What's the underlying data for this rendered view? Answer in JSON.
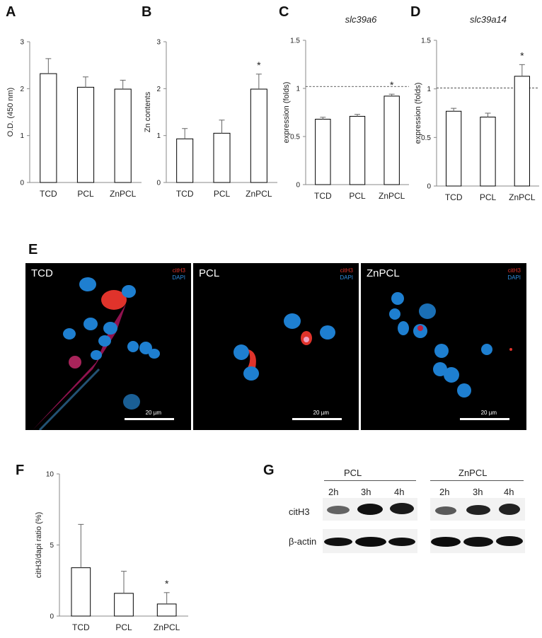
{
  "panels": {
    "A": "A",
    "B": "B",
    "C": "C",
    "D": "D",
    "E": "E",
    "F": "F",
    "G": "G"
  },
  "chart_data": [
    {
      "id": "A",
      "type": "bar",
      "title": "",
      "ylabel": "O.D. (450 nm)",
      "ylim": [
        0,
        3
      ],
      "yticks": [
        "0",
        "1",
        "2",
        "3"
      ],
      "categories": [
        "TCD",
        "PCL",
        "ZnPCL"
      ],
      "values": [
        2.32,
        2.03,
        1.99
      ],
      "errors": [
        0.32,
        0.22,
        0.19
      ],
      "significance": [
        "",
        "",
        ""
      ],
      "reference_line": null
    },
    {
      "id": "B",
      "type": "bar",
      "title": "",
      "ylabel": "Zn contents",
      "ylim": [
        0,
        3
      ],
      "yticks": [
        "0",
        "1",
        "2",
        "3"
      ],
      "categories": [
        "TCD",
        "PCL",
        "ZnPCL"
      ],
      "values": [
        0.93,
        1.05,
        1.99
      ],
      "errors": [
        0.22,
        0.28,
        0.32
      ],
      "significance": [
        "",
        "",
        "*"
      ],
      "reference_line": null
    },
    {
      "id": "C",
      "type": "bar",
      "title": "slc39a6",
      "ylabel": "expression (folds)",
      "ylim": [
        0,
        1.5
      ],
      "yticks": [
        "0",
        "0.5",
        "1",
        "1.5"
      ],
      "categories": [
        "TCD",
        "PCL",
        "ZnPCL"
      ],
      "values": [
        0.68,
        0.71,
        0.92
      ],
      "errors": [
        0.02,
        0.02,
        0.02
      ],
      "significance": [
        "",
        "",
        "*"
      ],
      "reference_line": 1.02
    },
    {
      "id": "D",
      "type": "bar",
      "title": "slc39a14",
      "ylabel": "expression (folds)",
      "ylim": [
        0,
        1.5
      ],
      "yticks": [
        "0",
        "0.5",
        "1",
        "1.5"
      ],
      "categories": [
        "TCD",
        "PCL",
        "ZnPCL"
      ],
      "values": [
        0.77,
        0.71,
        1.13
      ],
      "errors": [
        0.03,
        0.04,
        0.12
      ],
      "significance": [
        "",
        "",
        "*"
      ],
      "reference_line": 1.01
    },
    {
      "id": "F",
      "type": "bar",
      "title": "",
      "ylabel": "citH3/dapi ratio (%)",
      "ylim": [
        0,
        10
      ],
      "yticks": [
        "0",
        "5",
        "10"
      ],
      "categories": [
        "TCD",
        "PCL",
        "ZnPCL"
      ],
      "values": [
        3.4,
        1.6,
        0.85
      ],
      "errors": [
        3.05,
        1.55,
        0.8
      ],
      "significance": [
        "",
        "",
        "*"
      ],
      "reference_line": null
    }
  ],
  "microscopy": [
    {
      "label": "TCD",
      "stain1": "citH3",
      "stain2": "DAPI",
      "scale": "20 µm"
    },
    {
      "label": "PCL",
      "stain1": "citH3",
      "stain2": "DAPI",
      "scale": "20 µm"
    },
    {
      "label": "ZnPCL",
      "stain1": "citH3",
      "stain2": "DAPI",
      "scale": "20 µm"
    }
  ],
  "blot": {
    "groups": [
      "PCL",
      "ZnPCL"
    ],
    "timepoints": [
      "2h",
      "3h",
      "4h"
    ],
    "rows": [
      "citH3",
      "β-actin"
    ]
  },
  "colors": {
    "bar_fill": "#ffffff",
    "bar_stroke": "#000000",
    "cith3_red": "#e0332b",
    "dapi_blue": "#2f8fe0",
    "cell_blue": "#1e7fd0"
  }
}
